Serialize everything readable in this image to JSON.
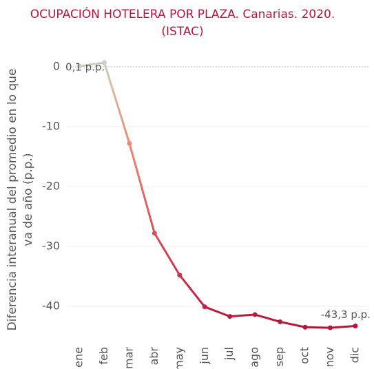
{
  "chart_data": {
    "type": "line",
    "title": [
      "OCUPACIÓN HOTELERA POR PLAZA. Canarias. 2020.",
      "(ISTAC)"
    ],
    "y_label": [
      "Diferencia interanual del promedio en lo que",
      "va de año (p.p.)"
    ],
    "categories": [
      "ene",
      "feb",
      "mar",
      "abr",
      "may",
      "jun",
      "jul",
      "ago",
      "sep",
      "oct",
      "nov",
      "dic"
    ],
    "values": [
      0.1,
      0.7,
      -12.8,
      -27.8,
      -34.8,
      -40.1,
      -41.7,
      -41.4,
      -42.6,
      -43.5,
      -43.6,
      -43.3
    ],
    "value_labels": [
      "0,1 p.p.",
      null,
      null,
      null,
      null,
      null,
      null,
      null,
      null,
      null,
      null,
      "-43,3 p.p."
    ],
    "colors": [
      "#c9d3bd",
      "#f08a74",
      "#dd4f5a",
      "#b5173c"
    ],
    "ylim": [
      -46,
      2
    ],
    "yticks": [
      0,
      -10,
      -20,
      -30,
      -40
    ],
    "grid": true
  }
}
